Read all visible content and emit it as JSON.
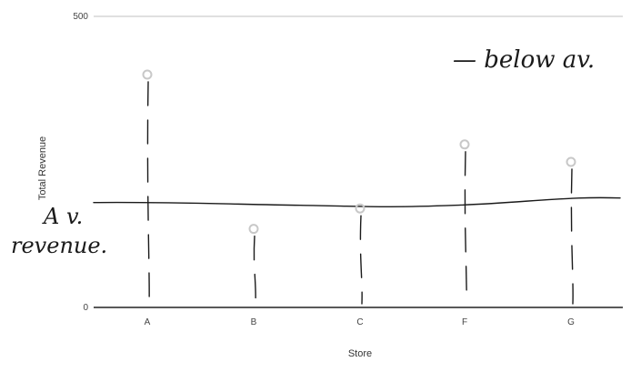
{
  "chart_data": {
    "type": "scatter",
    "title": "",
    "xlabel": "Store",
    "ylabel": "Total Revenue",
    "categories": [
      "A",
      "B",
      "C",
      "F",
      "G"
    ],
    "series": [
      {
        "values": [
          400,
          135,
          170,
          280,
          250
        ]
      }
    ],
    "ylim": [
      0,
      500
    ],
    "y_ticks": [
      0,
      500
    ],
    "average_line": 177,
    "grid": false,
    "legend": "none",
    "point_color": "#c8c8c8",
    "annotations": {
      "average": "A v. revenue.",
      "below": "— below av."
    }
  }
}
